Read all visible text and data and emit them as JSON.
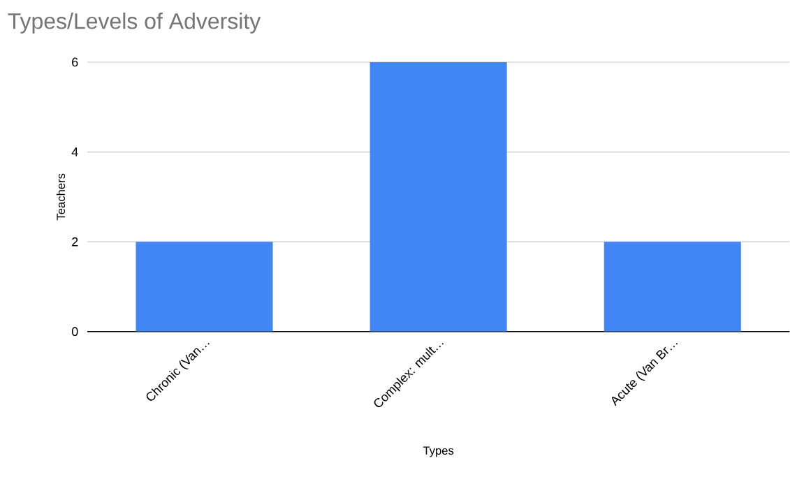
{
  "chart_data": {
    "type": "bar",
    "title": "Types/Levels of Adversity",
    "xlabel": "Types",
    "ylabel": "Teachers",
    "categories": [
      "Chronic (Van…",
      "Complex: mult…",
      "Acute (Van Br…"
    ],
    "values": [
      2,
      6,
      2
    ],
    "color": "#4285f4",
    "ylim": [
      0,
      6
    ],
    "yticks": [
      0,
      2,
      4,
      6
    ],
    "grid": "y"
  }
}
